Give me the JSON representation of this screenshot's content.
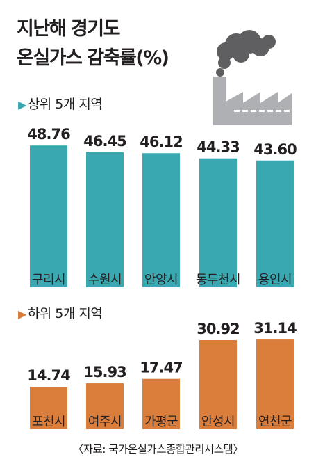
{
  "title_line1": "지난해 경기도",
  "title_line2": "온실가스 감축률(%)",
  "sections": [
    {
      "label": "상위 5개 지역",
      "color": "#39a8b1",
      "arrow_color": "#39a8b1",
      "chart_data": {
        "type": "bar",
        "categories": [
          "구리시",
          "수원시",
          "안양시",
          "동두천시",
          "용인시"
        ],
        "values": [
          48.76,
          46.45,
          46.12,
          44.33,
          43.6
        ],
        "value_labels": [
          "48.76",
          "46.45",
          "46.12",
          "44.33",
          "43.60"
        ]
      }
    },
    {
      "label": "하위 5개 지역",
      "color": "#db7e3c",
      "arrow_color": "#db7e3c",
      "chart_data": {
        "type": "bar",
        "categories": [
          "포천시",
          "여주시",
          "가평군",
          "안성시",
          "연천군"
        ],
        "values": [
          14.74,
          15.93,
          17.47,
          30.92,
          31.14
        ],
        "value_labels": [
          "14.74",
          "15.93",
          "17.47",
          "30.92",
          "31.14"
        ]
      }
    }
  ],
  "source": "〈자료: 국가온실가스종합관리시스템〉",
  "icon": "factory-smoke-icon"
}
